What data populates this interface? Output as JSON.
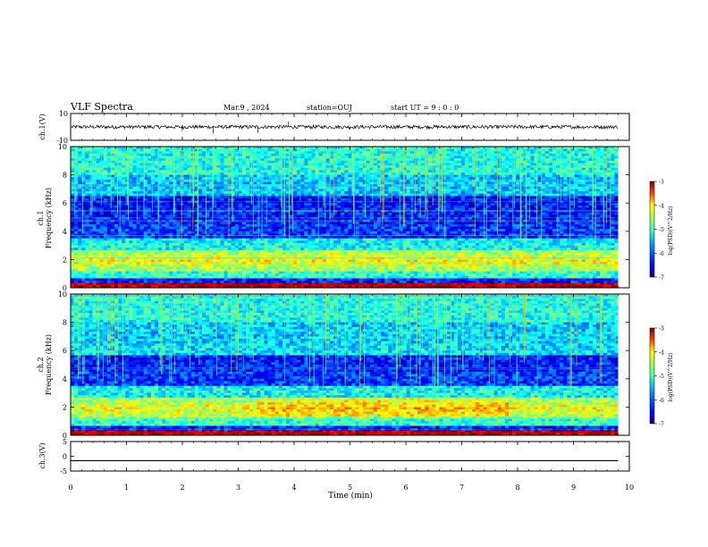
{
  "header": {
    "title": "VLF Spectra",
    "date": "Mar.9 , 2024",
    "station": "station=OUJ",
    "start": "start UT = 9 : 0 : 0"
  },
  "chart_data": [
    {
      "type": "line",
      "ylabel": "ch.1(V)",
      "ylim": [
        -10,
        10
      ],
      "yticklabels": [
        "10",
        "-10"
      ],
      "x_range_min": [
        0,
        9.8
      ],
      "baseline_v": 0,
      "note": "waveform"
    },
    {
      "type": "heatmap",
      "ylabel_top": "ch.1",
      "ylabel": "Frequency (kHz)",
      "ylim": [
        0,
        10
      ],
      "yticks": [
        0,
        2,
        4,
        6,
        8,
        10
      ],
      "colorbar": {
        "label": "log(PSD)(V^2/Hz)",
        "min": -7,
        "max": -3,
        "ticks": [
          -3,
          -4,
          -5,
          -6,
          -7
        ]
      }
    },
    {
      "type": "heatmap",
      "ylabel_top": "ch.2",
      "ylabel": "Frequency (kHz)",
      "ylim": [
        0,
        10
      ],
      "yticks": [
        0,
        2,
        4,
        6,
        8,
        10
      ],
      "colorbar": {
        "label": "log(PSD)(V^2/Hz)",
        "min": -7,
        "max": -3,
        "ticks": [
          -3,
          -4,
          -5,
          -6,
          -7
        ]
      }
    },
    {
      "type": "line",
      "ylabel": "ch.3(V)",
      "ylim": [
        -5,
        5
      ],
      "yticks": [
        5,
        0,
        -5
      ],
      "x": [
        0,
        9.8
      ],
      "values": [
        -1.5,
        -1.5
      ]
    }
  ],
  "xaxis": {
    "label": "Time (min)",
    "xlim": [
      0,
      10
    ],
    "ticks": [
      0,
      1,
      2,
      3,
      4,
      5,
      6,
      7,
      8,
      9,
      10
    ]
  },
  "colors": {
    "colormap": [
      "#00007f",
      "#0000ff",
      "#0080ff",
      "#00ffff",
      "#80ff80",
      "#ffff00",
      "#ff8000",
      "#ff0000",
      "#7f0000"
    ]
  }
}
